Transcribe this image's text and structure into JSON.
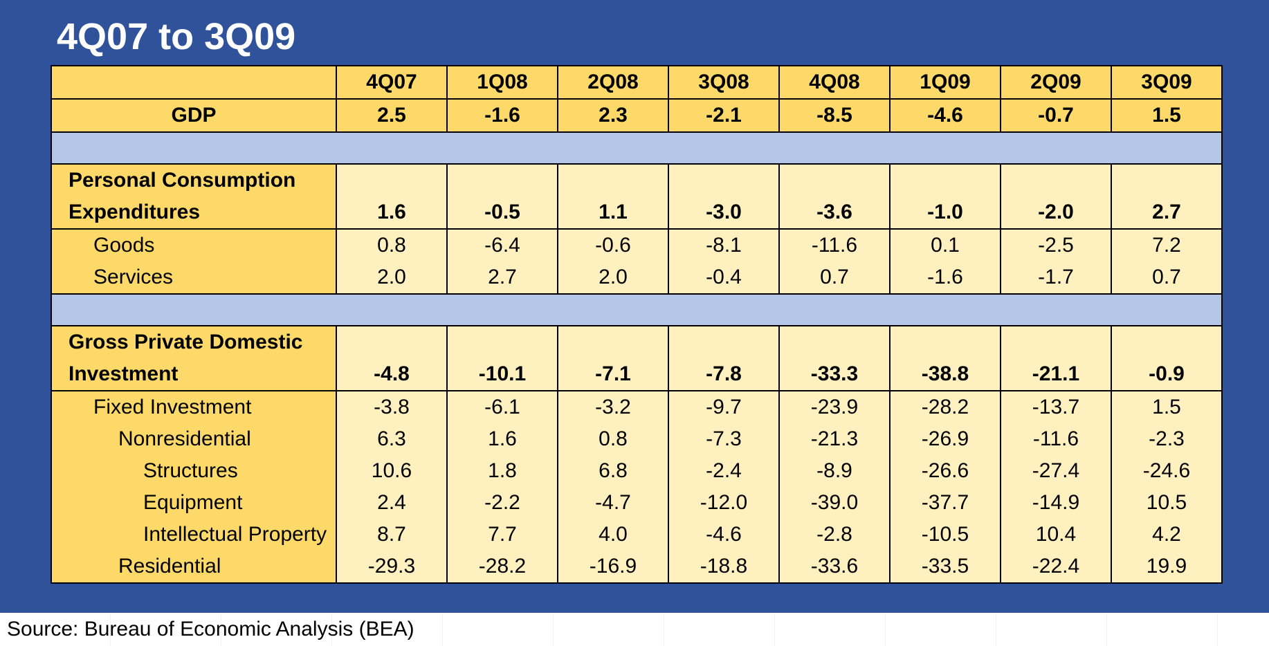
{
  "title": "4Q07 to 3Q09",
  "source": "Source: Bureau of Economic Analysis (BEA)",
  "colors": {
    "background": "#30529a",
    "header": "#fdd96a",
    "cell": "#fff0c0",
    "spacer": "#b4c7e7"
  },
  "chart_data": {
    "type": "table",
    "columns": [
      "4Q07",
      "1Q08",
      "2Q08",
      "3Q08",
      "4Q08",
      "1Q09",
      "2Q09",
      "3Q09"
    ],
    "rows": [
      {
        "label": "GDP",
        "values": [
          "2.5",
          "-1.6",
          "2.3",
          "-2.1",
          "-8.5",
          "-4.6",
          "-0.7",
          "1.5"
        ]
      },
      {
        "label": "Personal Consumption Expenditures",
        "values": [
          "1.6",
          "-0.5",
          "1.1",
          "-3.0",
          "-3.6",
          "-1.0",
          "-2.0",
          "2.7"
        ]
      },
      {
        "label": "Goods",
        "values": [
          "0.8",
          "-6.4",
          "-0.6",
          "-8.1",
          "-11.6",
          "0.1",
          "-2.5",
          "7.2"
        ]
      },
      {
        "label": "Services",
        "values": [
          "2.0",
          "2.7",
          "2.0",
          "-0.4",
          "0.7",
          "-1.6",
          "-1.7",
          "0.7"
        ]
      },
      {
        "label": "Gross Private Domestic Investment",
        "values": [
          "-4.8",
          "-10.1",
          "-7.1",
          "-7.8",
          "-33.3",
          "-38.8",
          "-21.1",
          "-0.9"
        ]
      },
      {
        "label": "Fixed Investment",
        "values": [
          "-3.8",
          "-6.1",
          "-3.2",
          "-9.7",
          "-23.9",
          "-28.2",
          "-13.7",
          "1.5"
        ]
      },
      {
        "label": "Nonresidential",
        "values": [
          "6.3",
          "1.6",
          "0.8",
          "-7.3",
          "-21.3",
          "-26.9",
          "-11.6",
          "-2.3"
        ]
      },
      {
        "label": "Structures",
        "values": [
          "10.6",
          "1.8",
          "6.8",
          "-2.4",
          "-8.9",
          "-26.6",
          "-27.4",
          "-24.6"
        ]
      },
      {
        "label": "Equipment",
        "values": [
          "2.4",
          "-2.2",
          "-4.7",
          "-12.0",
          "-39.0",
          "-37.7",
          "-14.9",
          "10.5"
        ]
      },
      {
        "label": "Intellectual Property",
        "values": [
          "8.7",
          "7.7",
          "4.0",
          "-4.6",
          "-2.8",
          "-10.5",
          "10.4",
          "4.2"
        ]
      },
      {
        "label": "Residential",
        "values": [
          "-29.3",
          "-28.2",
          "-16.9",
          "-18.8",
          "-33.6",
          "-33.5",
          "-22.4",
          "19.9"
        ]
      }
    ]
  }
}
